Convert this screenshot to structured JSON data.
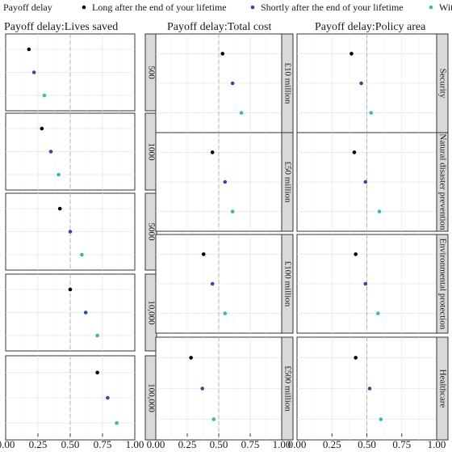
{
  "legend": {
    "title": "Payoff delay",
    "items": [
      {
        "label": "Long after the end of your lifetime",
        "color": "#000000"
      },
      {
        "label": "Shortly after the end of your lifetime",
        "color": "#2f4f9a"
      },
      {
        "label": "Within your lifetime",
        "color": "#3bb8b0"
      }
    ]
  },
  "chart_data": {
    "type": "scatter",
    "grid": true,
    "legend_position": "top",
    "reference_line": 0.5,
    "xlim": [
      0,
      1
    ],
    "x_ticks": [
      "0.00",
      "0.25",
      "0.50",
      "0.75",
      "1.00"
    ],
    "series_names": [
      "Long after the end of your lifetime",
      "Shortly after the end of your lifetime",
      "Within your lifetime"
    ],
    "colors": [
      "#000000",
      "#2f4f9a",
      "#3bb8b0"
    ],
    "columns": [
      {
        "title": "Payoff delay:Lives saved",
        "facets": [
          {
            "label": "500",
            "values": [
              0.18,
              0.22,
              0.3
            ]
          },
          {
            "label": "1000",
            "values": [
              0.28,
              0.35,
              0.41
            ]
          },
          {
            "label": "5000",
            "values": [
              0.42,
              0.5,
              0.59
            ]
          },
          {
            "label": "10,000",
            "values": [
              0.5,
              0.62,
              0.71
            ]
          },
          {
            "label": "100,000",
            "values": [
              0.71,
              0.79,
              0.86
            ]
          }
        ]
      },
      {
        "title": "Payoff delay:Total cost",
        "facets": [
          {
            "label": "£10 million",
            "values": [
              0.53,
              0.61,
              0.68
            ]
          },
          {
            "label": "£50 million",
            "values": [
              0.45,
              0.55,
              0.61
            ]
          },
          {
            "label": "£100 million",
            "values": [
              0.38,
              0.45,
              0.55
            ]
          },
          {
            "label": "£500 million",
            "values": [
              0.28,
              0.37,
              0.46
            ]
          }
        ]
      },
      {
        "title": "Payoff delay:Policy area",
        "facets": [
          {
            "label": "Security",
            "values": [
              0.39,
              0.46,
              0.53
            ]
          },
          {
            "label": "Natural disaster prevention",
            "values": [
              0.41,
              0.49,
              0.59
            ]
          },
          {
            "label": "Environmental protection",
            "values": [
              0.42,
              0.49,
              0.58
            ]
          },
          {
            "label": "Healthcare",
            "values": [
              0.42,
              0.52,
              0.6
            ]
          }
        ]
      }
    ]
  }
}
